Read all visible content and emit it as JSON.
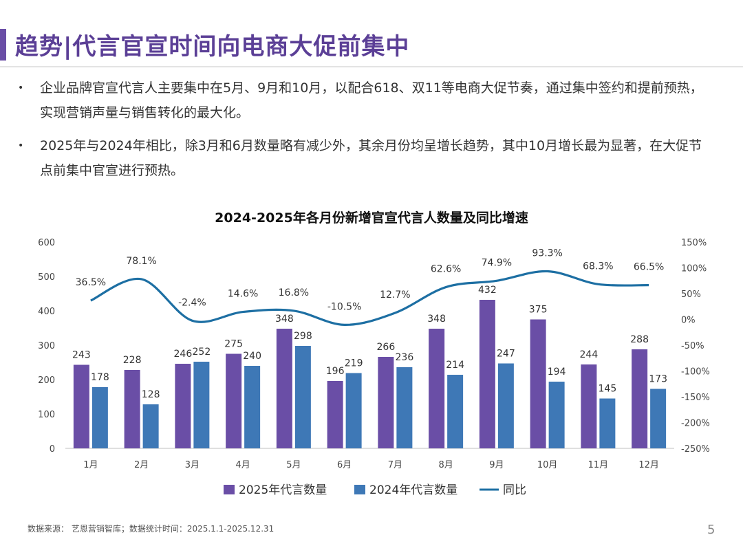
{
  "slide": {
    "title": "趋势|代言官宣时间向电商大促前集中",
    "bullets": [
      "企业品牌官宣代言人主要集中在5月、9月和10月，以配合618、双11等电商大促节奏，通过集中签约和提前预热，实现营销声量与销售转化的最大化。",
      "2025年与2024年相比，除3月和6月数量略有减少外，其余月份均呈增长趋势，其中10月增长最为显著，在大促节点前集中官宣进行预热。"
    ],
    "bullet_symbol": "•",
    "footer": "数据来源： 艺恩营销智库；数据统计时间：2025.1.1-2025.12.31",
    "page_number": "5"
  },
  "chart_data": {
    "type": "bar",
    "title": "2024-2025年各月份新增官宣代言人数量及同比增速",
    "categories": [
      "1月",
      "2月",
      "3月",
      "4月",
      "5月",
      "6月",
      "7月",
      "8月",
      "9月",
      "10月",
      "11月",
      "12月"
    ],
    "series": [
      {
        "name": "2025年代言数量",
        "type": "bar",
        "color": "#6a4ea6",
        "values": [
          243,
          228,
          246,
          275,
          348,
          196,
          266,
          348,
          432,
          375,
          244,
          288
        ]
      },
      {
        "name": "2024年代言数量",
        "type": "bar",
        "color": "#3e78b6",
        "values": [
          178,
          128,
          252,
          240,
          298,
          219,
          236,
          214,
          247,
          194,
          145,
          173
        ]
      },
      {
        "name": "同比",
        "type": "line",
        "axis": "right",
        "color": "#1d6fa3",
        "values": [
          36.5,
          78.1,
          -2.4,
          14.6,
          16.8,
          -10.5,
          12.7,
          62.6,
          74.9,
          93.3,
          68.3,
          66.5
        ],
        "labels": [
          "36.5%",
          "78.1%",
          "-2.4%",
          "14.6%",
          "16.8%",
          "-10.5%",
          "12.7%",
          "62.6%",
          "74.9%",
          "93.3%",
          "68.3%",
          "66.5%"
        ]
      }
    ],
    "ylim_left": [
      0,
      600
    ],
    "yticks_left": [
      "0",
      "100",
      "200",
      "300",
      "400",
      "500",
      "600"
    ],
    "ylim_right": [
      -250,
      150
    ],
    "yticks_right": [
      "-250%",
      "-200%",
      "-150%",
      "-100%",
      "-50%",
      "0%",
      "50%",
      "100%",
      "150%"
    ],
    "grid": false,
    "legend_position": "bottom"
  }
}
